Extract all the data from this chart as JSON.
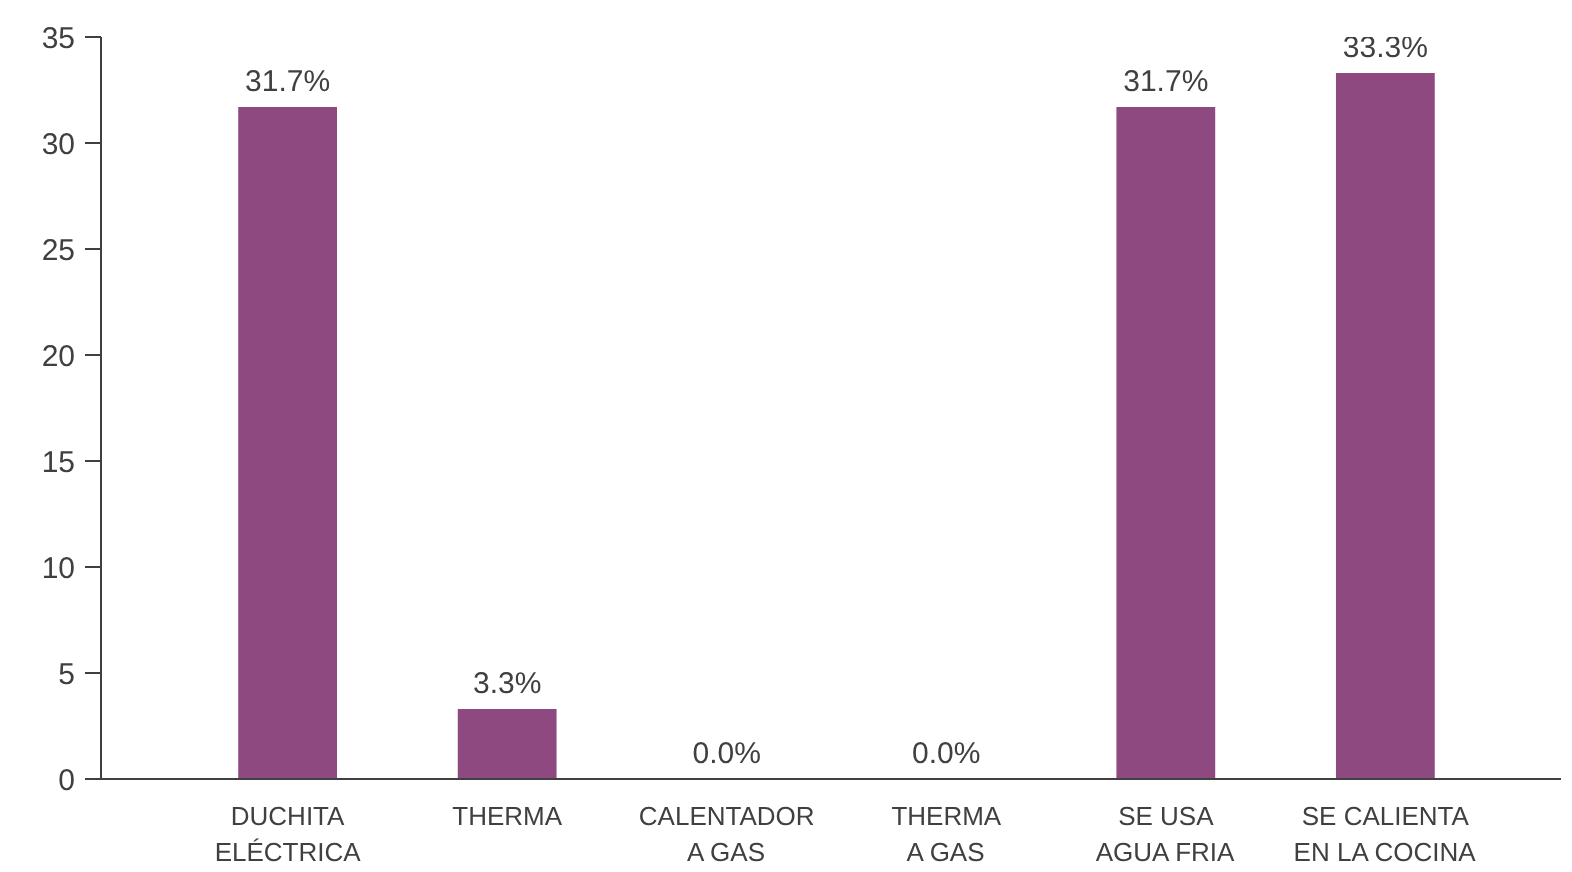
{
  "chart_data": {
    "type": "bar",
    "categories": [
      "DUCHITA\nELÉCTRICA",
      "THERMA",
      "CALENTADOR\nA GAS",
      "THERMA\nA GAS",
      "SE USA\nAGUA FRIA",
      "SE CALIENTA\nEN LA COCINA"
    ],
    "values": [
      31.7,
      3.3,
      0.0,
      0.0,
      31.7,
      33.3
    ],
    "value_labels": [
      "31.7%",
      "3.3%",
      "0.0%",
      "0.0%",
      "31.7%",
      "33.3%"
    ],
    "color": "#8e4a80",
    "ylim": [
      0,
      35
    ],
    "yticks": [
      0,
      5,
      10,
      15,
      20,
      25,
      30,
      35
    ],
    "grid": false
  }
}
